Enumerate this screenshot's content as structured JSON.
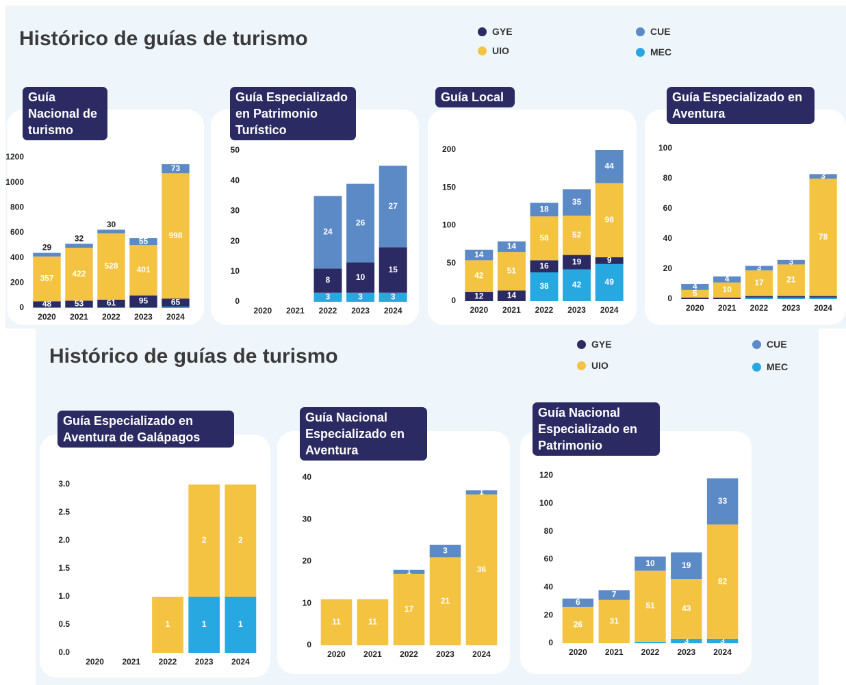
{
  "sections": [
    {
      "title": "Histórico de guías de turismo"
    },
    {
      "title": "Histórico de guías de turismo"
    }
  ],
  "chart_data": [
    {
      "type": "bar",
      "stacked": true,
      "title": "Guía Nacional de turismo",
      "categories": [
        "2020",
        "2021",
        "2022",
        "2023",
        "2024"
      ],
      "ylim": [
        0,
        1200
      ],
      "yticks": [
        0,
        200,
        400,
        600,
        800,
        1000,
        1200
      ],
      "series": [
        {
          "name": "MEC",
          "color": "#27a8e0",
          "values": [
            5,
            5,
            5,
            5,
            10
          ]
        },
        {
          "name": "GYE",
          "color": "#2b2a63",
          "values": [
            48,
            53,
            61,
            95,
            65
          ]
        },
        {
          "name": "UIO",
          "color": "#f5c342",
          "values": [
            357,
            422,
            528,
            401,
            998
          ]
        },
        {
          "name": "CUE",
          "color": "#5b8ac6",
          "values": [
            29,
            32,
            30,
            55,
            73
          ]
        }
      ]
    },
    {
      "type": "bar",
      "stacked": true,
      "title": "Guía Especializado en Patrimonio Turístico",
      "categories": [
        "2020",
        "2021",
        "2022",
        "2023",
        "2024"
      ],
      "ylim": [
        0,
        50
      ],
      "yticks": [
        0,
        10,
        20,
        30,
        40,
        50
      ],
      "series": [
        {
          "name": "MEC",
          "color": "#27a8e0",
          "values": [
            0,
            0,
            3,
            3,
            3
          ]
        },
        {
          "name": "GYE",
          "color": "#2b2a63",
          "values": [
            0,
            0,
            8,
            10,
            15
          ]
        },
        {
          "name": "UIO",
          "color": "#f5c342",
          "values": [
            0,
            0,
            0,
            0,
            0
          ]
        },
        {
          "name": "CUE",
          "color": "#5b8ac6",
          "values": [
            0,
            0,
            24,
            26,
            27
          ]
        }
      ]
    },
    {
      "type": "bar",
      "stacked": true,
      "title": "Guía Local",
      "categories": [
        "2020",
        "2021",
        "2022",
        "2023",
        "2024"
      ],
      "ylim": [
        0,
        200
      ],
      "yticks": [
        0,
        50,
        100,
        150,
        200
      ],
      "series": [
        {
          "name": "MEC",
          "color": "#27a8e0",
          "values": [
            0,
            0,
            38,
            42,
            49
          ]
        },
        {
          "name": "GYE",
          "color": "#2b2a63",
          "values": [
            12,
            14,
            16,
            19,
            9
          ]
        },
        {
          "name": "UIO",
          "color": "#f5c342",
          "values": [
            42,
            51,
            58,
            52,
            98
          ]
        },
        {
          "name": "CUE",
          "color": "#5b8ac6",
          "values": [
            14,
            14,
            18,
            35,
            44
          ]
        }
      ]
    },
    {
      "type": "bar",
      "stacked": true,
      "title": "Guía Especializado en Aventura",
      "categories": [
        "2020",
        "2021",
        "2022",
        "2023",
        "2024"
      ],
      "ylim": [
        0,
        100
      ],
      "yticks": [
        0,
        20,
        40,
        60,
        80,
        100
      ],
      "series": [
        {
          "name": "MEC",
          "color": "#27a8e0",
          "values": [
            0,
            0,
            1,
            1,
            1
          ]
        },
        {
          "name": "GYE",
          "color": "#2b2a63",
          "values": [
            1,
            1,
            1,
            1,
            1
          ]
        },
        {
          "name": "UIO",
          "color": "#f5c342",
          "values": [
            5,
            10,
            17,
            21,
            78
          ]
        },
        {
          "name": "CUE",
          "color": "#5b8ac6",
          "values": [
            4,
            4,
            3,
            3,
            3
          ]
        }
      ]
    },
    {
      "type": "bar",
      "stacked": true,
      "title": "Guía Especializado en Aventura de Galápagos",
      "categories": [
        "2020",
        "2021",
        "2022",
        "2023",
        "2024"
      ],
      "ylim": [
        0,
        3
      ],
      "yticks": [
        {
          "value": 0,
          "label": "0.0"
        },
        0.5,
        {
          "value": 1,
          "label": "1.0"
        },
        1.5,
        {
          "value": 2,
          "label": "2.0"
        },
        2.5,
        {
          "value": 3,
          "label": "3.0"
        }
      ],
      "series": [
        {
          "name": "MEC",
          "color": "#27a8e0",
          "values": [
            0,
            0,
            0,
            1,
            1
          ]
        },
        {
          "name": "GYE",
          "color": "#2b2a63",
          "values": [
            0,
            0,
            0,
            0,
            0
          ]
        },
        {
          "name": "UIO",
          "color": "#f5c342",
          "values": [
            0,
            0,
            1,
            2,
            2
          ]
        },
        {
          "name": "CUE",
          "color": "#5b8ac6",
          "values": [
            0,
            0,
            0,
            0,
            0
          ]
        }
      ]
    },
    {
      "type": "bar",
      "stacked": true,
      "title": "Guía Nacional Especializado en Aventura",
      "categories": [
        "2020",
        "2021",
        "2022",
        "2023",
        "2024"
      ],
      "ylim": [
        0,
        40
      ],
      "yticks": [
        0,
        10,
        20,
        30,
        40
      ],
      "series": [
        {
          "name": "MEC",
          "color": "#27a8e0",
          "values": [
            0,
            0,
            0,
            0,
            0
          ]
        },
        {
          "name": "GYE",
          "color": "#2b2a63",
          "values": [
            0,
            0,
            0,
            0,
            0
          ]
        },
        {
          "name": "UIO",
          "color": "#f5c342",
          "values": [
            11,
            11,
            17,
            21,
            36
          ]
        },
        {
          "name": "CUE",
          "color": "#5b8ac6",
          "values": [
            0,
            0,
            1,
            3,
            1
          ]
        }
      ]
    },
    {
      "type": "bar",
      "stacked": true,
      "title": "Guía Nacional Especializado en Patrimonio",
      "categories": [
        "2020",
        "2021",
        "2022",
        "2023",
        "2024"
      ],
      "ylim": [
        0,
        120
      ],
      "yticks": [
        0,
        20,
        40,
        60,
        80,
        100,
        120
      ],
      "series": [
        {
          "name": "MEC",
          "color": "#27a8e0",
          "values": [
            0,
            0,
            1,
            3,
            3
          ]
        },
        {
          "name": "GYE",
          "color": "#2b2a63",
          "values": [
            0,
            0,
            0,
            0,
            0
          ]
        },
        {
          "name": "UIO",
          "color": "#f5c342",
          "values": [
            26,
            31,
            51,
            43,
            82
          ]
        },
        {
          "name": "CUE",
          "color": "#5b8ac6",
          "values": [
            6,
            7,
            10,
            19,
            33
          ]
        }
      ]
    }
  ]
}
